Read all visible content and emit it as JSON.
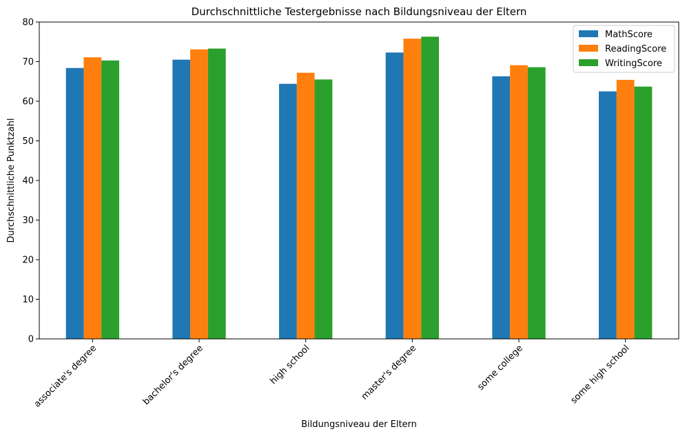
{
  "chart_data": {
    "type": "bar",
    "title": "Durchschnittliche Testergebnisse nach Bildungsniveau der Eltern",
    "xlabel": "Bildungsniveau der Eltern",
    "ylabel": "Durchschnittliche Punktzahl",
    "ylim": [
      0,
      80
    ],
    "yticks": [
      0,
      10,
      20,
      30,
      40,
      50,
      60,
      70,
      80
    ],
    "categories": [
      "associate's degree",
      "bachelor's degree",
      "high school",
      "master's degree",
      "some college",
      "some high school"
    ],
    "series": [
      {
        "name": "MathScore",
        "color": "#1f77b4",
        "values": [
          68.4,
          70.5,
          64.4,
          72.3,
          66.3,
          62.5
        ]
      },
      {
        "name": "ReadingScore",
        "color": "#ff7f0e",
        "values": [
          71.1,
          73.1,
          67.2,
          75.8,
          69.1,
          65.4
        ]
      },
      {
        "name": "WritingScore",
        "color": "#2ca02c",
        "values": [
          70.3,
          73.3,
          65.5,
          76.3,
          68.6,
          63.7
        ]
      }
    ],
    "grid": false,
    "legend_position": "top-right"
  }
}
